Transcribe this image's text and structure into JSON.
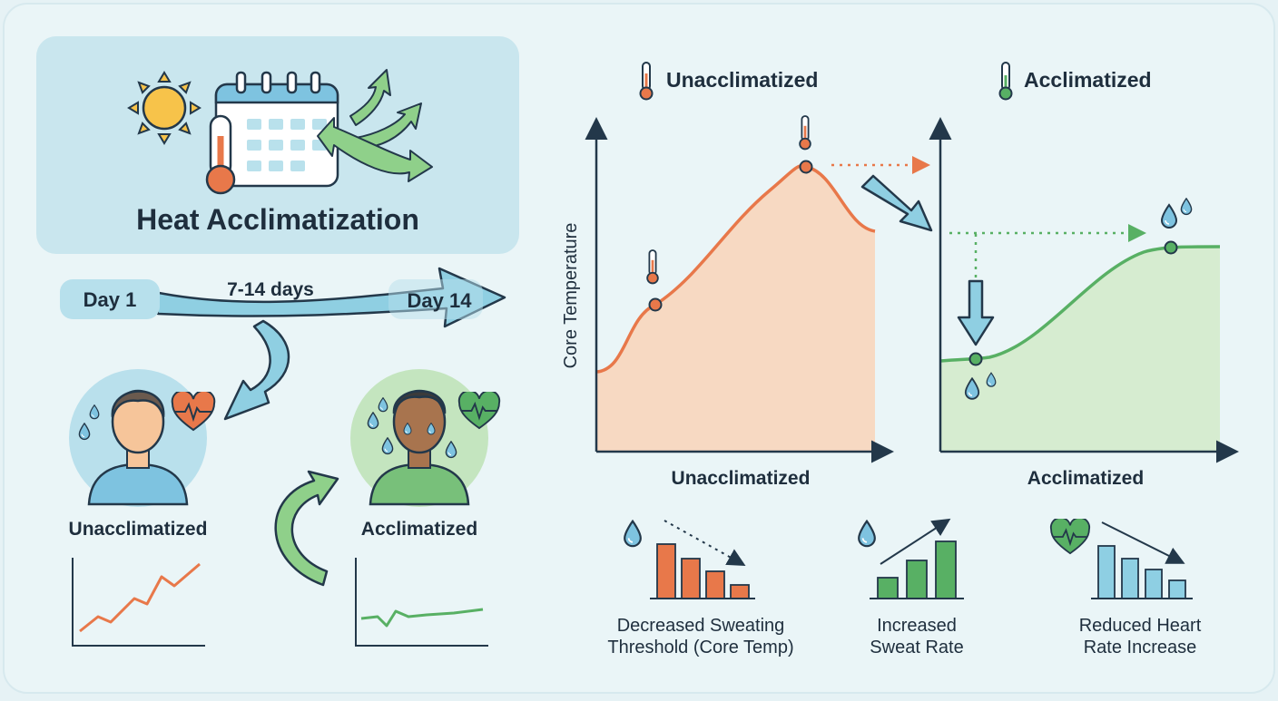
{
  "colors": {
    "background": "#e6f2f5",
    "title_panel": "#c9e6ee",
    "arrow_blue": "#8fcfe2",
    "outline": "#23384a",
    "orange": "#e8784a",
    "orange_fill": "#f7d9c2",
    "green": "#58b064",
    "green_fill": "#d6ecd0",
    "drop_blue": "#7ec3e0",
    "sun": "#f7c34a",
    "bar_blue": "#8ecfe3",
    "text": "#1e2e3d"
  },
  "title": {
    "text": "Heat Acclimatization",
    "icons": [
      "sun-icon",
      "calendar-icon",
      "thermometer-icon",
      "arrows-icon"
    ]
  },
  "timeline": {
    "start": "Day 1",
    "duration": "7-14 days",
    "end": "Day 14"
  },
  "people": [
    {
      "label": "Unacclimatized",
      "icons": [
        "sweat-drop-icon",
        "heart-rate-icon"
      ],
      "trend": "rising"
    },
    {
      "label": "Acclimatized",
      "icons": [
        "sweat-drop-icon",
        "heart-rate-icon"
      ],
      "trend": "flat"
    }
  ],
  "charts": {
    "unacclimatized": {
      "header": "Unacclimatized",
      "xlabel": "Unacclimatized",
      "ylabel": "Core Temperature"
    },
    "acclimatized": {
      "header": "Acclimatized",
      "xlabel": "Acclimatized"
    }
  },
  "effects": [
    {
      "label_line1": "Decreased Sweating",
      "label_line2": "Threshold (Core Temp)",
      "icon": "sweat-drop-icon",
      "bars": [
        4,
        3.3,
        2.4,
        1.6
      ],
      "trend": "down"
    },
    {
      "label_line1": "Increased",
      "label_line2": "Sweat Rate",
      "icon": "sweat-drop-icon",
      "bars": [
        1.6,
        2.8,
        4
      ],
      "trend": "up"
    },
    {
      "label_line1": "Reduced Heart",
      "label_line2": "Rate Increase",
      "icon": "heart-rate-icon",
      "bars": [
        4,
        3,
        2.2,
        1.4
      ],
      "trend": "down"
    }
  ]
}
